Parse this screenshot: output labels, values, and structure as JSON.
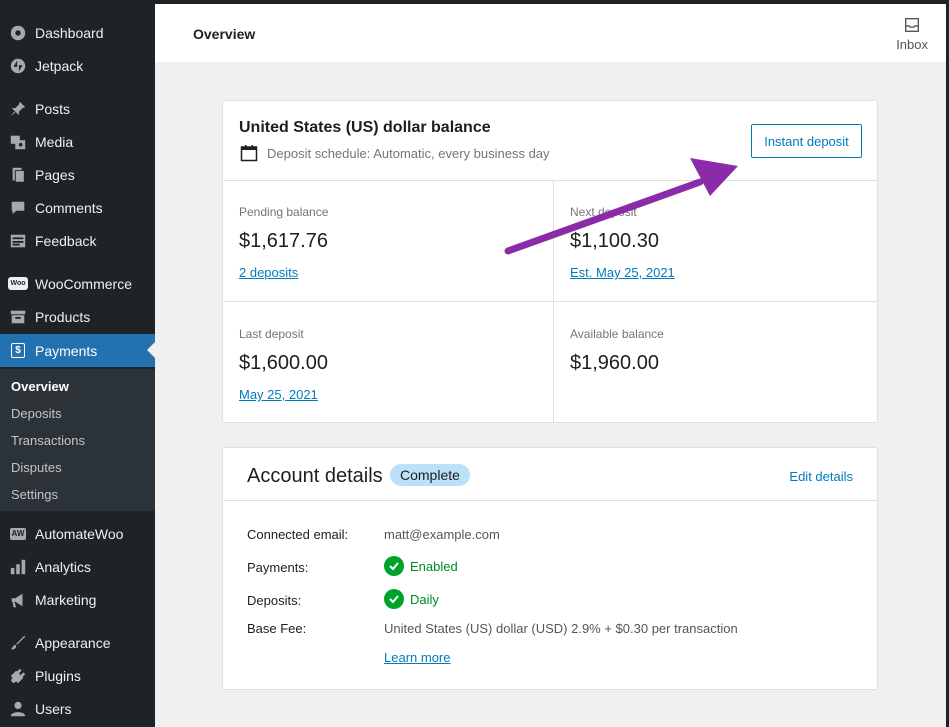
{
  "sidebar": {
    "items": [
      {
        "label": "Dashboard",
        "icon": "dashboard-icon"
      },
      {
        "label": "Jetpack",
        "icon": "jetpack-icon"
      },
      {
        "label": "Posts",
        "icon": "pin-icon"
      },
      {
        "label": "Media",
        "icon": "media-icon"
      },
      {
        "label": "Pages",
        "icon": "pages-icon"
      },
      {
        "label": "Comments",
        "icon": "comment-icon"
      },
      {
        "label": "Feedback",
        "icon": "feedback-icon"
      },
      {
        "label": "WooCommerce",
        "icon": "woo-icon",
        "icon_text": "Woo"
      },
      {
        "label": "Products",
        "icon": "archive-icon"
      },
      {
        "label": "Payments",
        "icon": "dollar-icon",
        "icon_text": "$"
      },
      {
        "label": "AutomateWoo",
        "icon": "automatewoo-icon",
        "icon_text": "AW"
      },
      {
        "label": "Analytics",
        "icon": "bar-chart-icon"
      },
      {
        "label": "Marketing",
        "icon": "megaphone-icon"
      },
      {
        "label": "Appearance",
        "icon": "brush-icon"
      },
      {
        "label": "Plugins",
        "icon": "plug-icon"
      },
      {
        "label": "Users",
        "icon": "user-icon"
      }
    ],
    "submenu": [
      "Overview",
      "Deposits",
      "Transactions",
      "Disputes",
      "Settings"
    ]
  },
  "header": {
    "title": "Overview",
    "inbox_label": "Inbox"
  },
  "balance": {
    "title": "United States (US) dollar balance",
    "schedule": "Deposit schedule: Automatic, every business day",
    "instant_deposit": "Instant deposit",
    "pending": {
      "label": "Pending balance",
      "value": "$1,617.76",
      "link": "2 deposits"
    },
    "next": {
      "label": "Next deposit",
      "value": "$1,100.30",
      "link": "Est. May 25, 2021"
    },
    "last": {
      "label": "Last deposit",
      "value": "$1,600.00",
      "link": "May 25, 2021"
    },
    "available": {
      "label": "Available balance",
      "value": "$1,960.00"
    }
  },
  "account": {
    "title": "Account details",
    "status": "Complete",
    "edit": "Edit details",
    "rows": {
      "email": {
        "label": "Connected email:",
        "value": "matt@example.com"
      },
      "payments": {
        "label": "Payments:",
        "value": "Enabled"
      },
      "deposits": {
        "label": "Deposits:",
        "value": "Daily"
      },
      "fee": {
        "label": "Base Fee:",
        "value": "United States (US) dollar (USD) 2.9% + $0.30 per transaction"
      }
    },
    "learn_more": "Learn more"
  },
  "colors": {
    "accent": "#007cba",
    "active_menu": "#2271b1",
    "sidebar_bg": "#1d2327",
    "success": "#00a32a",
    "arrow": "#8b2ba8"
  }
}
